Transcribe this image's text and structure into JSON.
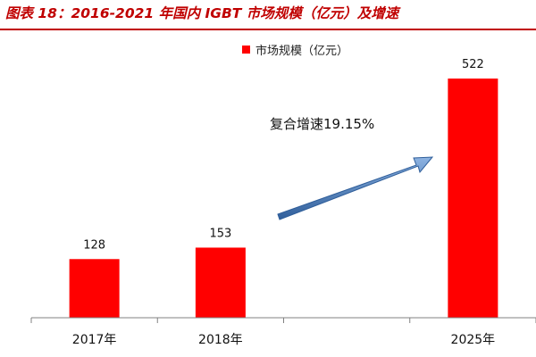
{
  "figure_title": "图表 18：2016-2021 年国内 IGBT 市场规模（亿元）及增速",
  "annotation": "复合增速19.15%",
  "colors": {
    "bar": "#ff0000",
    "title": "#c00000",
    "arrow": "#4f81bd",
    "axis": "#808080"
  },
  "chart_data": {
    "type": "bar",
    "categories": [
      "2017年",
      "2018年",
      "",
      "2025年"
    ],
    "series": [
      {
        "name": "市场规模（亿元）",
        "values": [
          128,
          153,
          null,
          522
        ]
      }
    ],
    "data_labels": [
      "128",
      "153",
      "",
      "522"
    ],
    "ylim": [
      0,
      600
    ],
    "grid": false,
    "legend_position": "top-center",
    "xlabel": "",
    "ylabel": ""
  }
}
